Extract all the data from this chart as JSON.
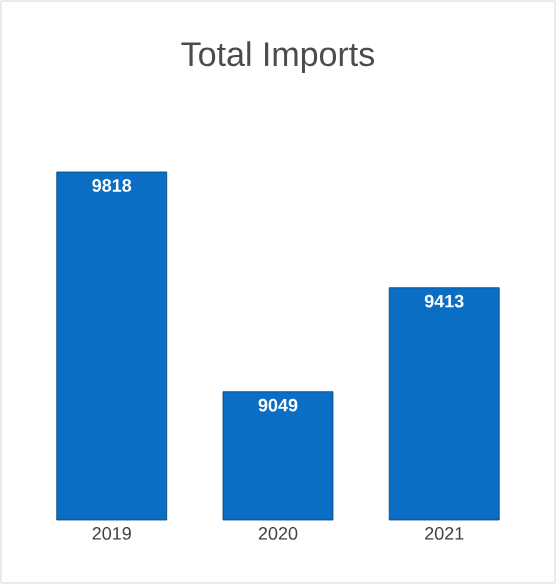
{
  "chart_data": {
    "type": "bar",
    "title": "Total Imports",
    "categories": [
      "2019",
      "2020",
      "2021"
    ],
    "values": [
      9818,
      9049,
      9413
    ],
    "color": "#0a6fc4",
    "ylim": [
      8600,
      9818
    ],
    "data_labels": true
  }
}
